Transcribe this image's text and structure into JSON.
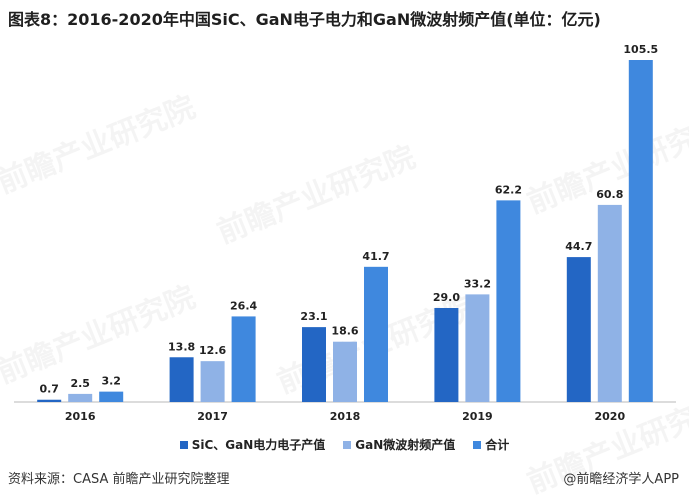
{
  "title": "图表8：2016-2020年中国SiC、GaN电子电力和GaN微波射频产值(单位：亿元)",
  "source": "资料来源：CASA 前瞻产业研究院整理",
  "brand": "@前瞻经济学人APP",
  "watermark": "前瞻产业研究院",
  "colors": {
    "series1": "#2366C4",
    "series2": "#8FB2E6",
    "series3": "#3F88DE",
    "axis": "#B8B8B8"
  },
  "chart_data": {
    "type": "bar",
    "categories": [
      "2016",
      "2017",
      "2018",
      "2019",
      "2020"
    ],
    "series": [
      {
        "name": "SiC、GaN电力电子产值",
        "values": [
          0.7,
          13.8,
          23.1,
          29.0,
          44.7
        ]
      },
      {
        "name": "GaN微波射频产值",
        "values": [
          2.5,
          12.6,
          18.6,
          33.2,
          60.8
        ]
      },
      {
        "name": "合计",
        "values": [
          3.2,
          26.4,
          41.7,
          62.2,
          105.5
        ]
      }
    ],
    "ylim": [
      0,
      105.5
    ],
    "grid": false,
    "legend_position": "bottom"
  }
}
